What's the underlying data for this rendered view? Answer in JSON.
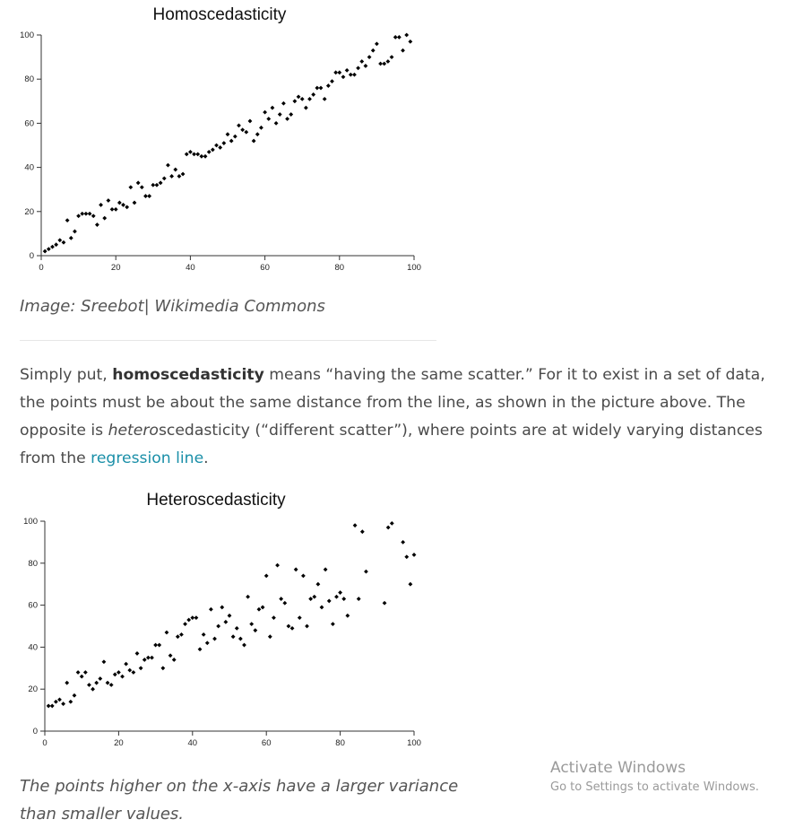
{
  "chart_data": [
    {
      "type": "scatter",
      "title": "Homoscedasticity",
      "xlim": [
        0,
        100
      ],
      "ylim": [
        0,
        100
      ],
      "x_ticks": [
        0,
        20,
        40,
        60,
        80,
        100
      ],
      "y_ticks": [
        0,
        20,
        40,
        60,
        80,
        100
      ],
      "grid": false,
      "marker_color": "#000000",
      "points": [
        [
          1,
          2
        ],
        [
          2,
          3
        ],
        [
          3,
          4
        ],
        [
          4,
          5
        ],
        [
          5,
          7
        ],
        [
          6,
          6
        ],
        [
          7,
          16
        ],
        [
          8,
          8
        ],
        [
          9,
          11
        ],
        [
          10,
          18
        ],
        [
          11,
          19
        ],
        [
          12,
          19
        ],
        [
          13,
          19
        ],
        [
          14,
          18
        ],
        [
          15,
          14
        ],
        [
          16,
          23
        ],
        [
          17,
          17
        ],
        [
          18,
          25
        ],
        [
          19,
          21
        ],
        [
          20,
          21
        ],
        [
          21,
          24
        ],
        [
          22,
          23
        ],
        [
          23,
          22
        ],
        [
          24,
          31
        ],
        [
          25,
          24
        ],
        [
          26,
          33
        ],
        [
          27,
          31
        ],
        [
          28,
          27
        ],
        [
          29,
          27
        ],
        [
          30,
          32
        ],
        [
          31,
          32
        ],
        [
          32,
          33
        ],
        [
          33,
          35
        ],
        [
          34,
          41
        ],
        [
          35,
          36
        ],
        [
          36,
          39
        ],
        [
          37,
          36
        ],
        [
          38,
          37
        ],
        [
          39,
          46
        ],
        [
          40,
          47
        ],
        [
          41,
          46
        ],
        [
          42,
          46
        ],
        [
          43,
          45
        ],
        [
          44,
          45
        ],
        [
          45,
          47
        ],
        [
          46,
          48
        ],
        [
          47,
          50
        ],
        [
          48,
          49
        ],
        [
          49,
          51
        ],
        [
          50,
          55
        ],
        [
          51,
          52
        ],
        [
          52,
          54
        ],
        [
          53,
          59
        ],
        [
          54,
          57
        ],
        [
          55,
          56
        ],
        [
          56,
          61
        ],
        [
          57,
          52
        ],
        [
          58,
          55
        ],
        [
          59,
          58
        ],
        [
          60,
          65
        ],
        [
          61,
          62
        ],
        [
          62,
          67
        ],
        [
          63,
          60
        ],
        [
          64,
          64
        ],
        [
          65,
          69
        ],
        [
          66,
          62
        ],
        [
          67,
          64
        ],
        [
          68,
          70
        ],
        [
          69,
          72
        ],
        [
          70,
          71
        ],
        [
          71,
          67
        ],
        [
          72,
          71
        ],
        [
          73,
          73
        ],
        [
          74,
          76
        ],
        [
          75,
          76
        ],
        [
          76,
          71
        ],
        [
          77,
          77
        ],
        [
          78,
          79
        ],
        [
          79,
          83
        ],
        [
          80,
          83
        ],
        [
          81,
          81
        ],
        [
          82,
          84
        ],
        [
          83,
          82
        ],
        [
          84,
          82
        ],
        [
          85,
          85
        ],
        [
          86,
          88
        ],
        [
          87,
          86
        ],
        [
          88,
          90
        ],
        [
          89,
          93
        ],
        [
          90,
          96
        ],
        [
          91,
          87
        ],
        [
          92,
          87
        ],
        [
          93,
          88
        ],
        [
          94,
          90
        ],
        [
          95,
          99
        ],
        [
          96,
          99
        ],
        [
          97,
          93
        ],
        [
          98,
          100
        ],
        [
          99,
          97
        ]
      ]
    },
    {
      "type": "scatter",
      "title": "Heteroscedasticity",
      "xlim": [
        0,
        100
      ],
      "ylim": [
        0,
        100
      ],
      "x_ticks": [
        0,
        20,
        40,
        60,
        80,
        100
      ],
      "y_ticks": [
        0,
        20,
        40,
        60,
        80,
        100
      ],
      "grid": false,
      "marker_color": "#000000",
      "points": [
        [
          1,
          12
        ],
        [
          2,
          12
        ],
        [
          3,
          14
        ],
        [
          4,
          15
        ],
        [
          5,
          13
        ],
        [
          6,
          23
        ],
        [
          7,
          14
        ],
        [
          8,
          17
        ],
        [
          9,
          28
        ],
        [
          10,
          26
        ],
        [
          11,
          28
        ],
        [
          12,
          22
        ],
        [
          13,
          20
        ],
        [
          14,
          23
        ],
        [
          15,
          25
        ],
        [
          16,
          33
        ],
        [
          17,
          23
        ],
        [
          18,
          22
        ],
        [
          19,
          27
        ],
        [
          20,
          28
        ],
        [
          21,
          26
        ],
        [
          22,
          32
        ],
        [
          23,
          29
        ],
        [
          24,
          28
        ],
        [
          25,
          37
        ],
        [
          26,
          30
        ],
        [
          27,
          34
        ],
        [
          28,
          35
        ],
        [
          29,
          35
        ],
        [
          30,
          41
        ],
        [
          31,
          41
        ],
        [
          32,
          30
        ],
        [
          33,
          47
        ],
        [
          34,
          36
        ],
        [
          35,
          34
        ],
        [
          36,
          45
        ],
        [
          37,
          46
        ],
        [
          38,
          51
        ],
        [
          39,
          53
        ],
        [
          40,
          54
        ],
        [
          41,
          54
        ],
        [
          42,
          39
        ],
        [
          43,
          46
        ],
        [
          44,
          42
        ],
        [
          45,
          58
        ],
        [
          46,
          44
        ],
        [
          47,
          50
        ],
        [
          48,
          59
        ],
        [
          49,
          52
        ],
        [
          50,
          55
        ],
        [
          51,
          45
        ],
        [
          52,
          49
        ],
        [
          53,
          44
        ],
        [
          54,
          41
        ],
        [
          55,
          64
        ],
        [
          56,
          51
        ],
        [
          57,
          48
        ],
        [
          58,
          58
        ],
        [
          59,
          59
        ],
        [
          60,
          74
        ],
        [
          61,
          45
        ],
        [
          62,
          54
        ],
        [
          63,
          79
        ],
        [
          64,
          63
        ],
        [
          65,
          61
        ],
        [
          66,
          50
        ],
        [
          67,
          49
        ],
        [
          68,
          77
        ],
        [
          69,
          54
        ],
        [
          70,
          74
        ],
        [
          71,
          50
        ],
        [
          72,
          63
        ],
        [
          73,
          64
        ],
        [
          74,
          70
        ],
        [
          75,
          59
        ],
        [
          76,
          77
        ],
        [
          77,
          62
        ],
        [
          78,
          51
        ],
        [
          79,
          64
        ],
        [
          80,
          66
        ],
        [
          81,
          63
        ],
        [
          82,
          55
        ],
        [
          84,
          98
        ],
        [
          85,
          63
        ],
        [
          86,
          95
        ],
        [
          87,
          76
        ],
        [
          92,
          61
        ],
        [
          93,
          97
        ],
        [
          94,
          99
        ],
        [
          97,
          90
        ],
        [
          98,
          83
        ],
        [
          99,
          70
        ],
        [
          100,
          84
        ]
      ]
    }
  ],
  "captions": {
    "image_credit": "Image: Sreebot| Wikimedia Commons",
    "hetero_caption_line1": "The points higher on the x-axis have a larger variance",
    "hetero_caption_line2": "than smaller values."
  },
  "paragraph": {
    "intro": "Simply put, ",
    "term": "homoscedasticity",
    "text1": " means “having the same scatter.” For it to exist in a set of data, the points must be about the same distance from the line, as shown in the picture above. The opposite is ",
    "hetero_italic": "hetero",
    "text2": "scedasticity (“different scatter”), where points are at widely varying distances from the ",
    "link": "regression line",
    "end": "."
  },
  "watermark": {
    "title": "Activate Windows",
    "subtitle": "Go to Settings to activate Windows."
  },
  "colors": {
    "link": "#1a8fa8",
    "body_text": "#4a4a4a",
    "caption_text": "#555555",
    "watermark_text": "#9a9a9a"
  }
}
